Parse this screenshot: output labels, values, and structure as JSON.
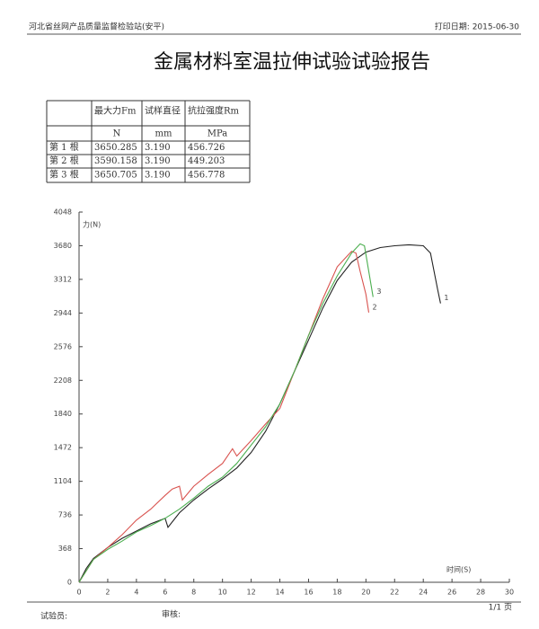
{
  "header": {
    "org": "河北省丝网产品质量监督检验站(安平)",
    "print_date": "打印日期: 2015-06-30"
  },
  "title": "金属材料室温拉伸试验试验报告",
  "table": {
    "header": [
      "最大力Fm",
      "试样直径",
      "抗拉强度Rm"
    ],
    "units": [
      "N",
      "mm",
      "MPa"
    ],
    "rows": [
      [
        "第 1 根",
        "3650.285",
        "3.190",
        "456.726"
      ],
      [
        "第 2 根",
        "3590.158",
        "3.190",
        "449.203"
      ],
      [
        "第 3 根",
        "3650.705",
        "3.190",
        "456.778"
      ]
    ]
  },
  "chart_data": {
    "type": "line",
    "ylabel": "力(N)",
    "xlabel": "时间(S)",
    "xlim": [
      0,
      30
    ],
    "xticks": [
      0,
      2,
      4,
      6,
      8,
      10,
      12,
      14,
      16,
      18,
      20,
      22,
      24,
      26,
      28,
      30
    ],
    "ylim": [
      0,
      4048
    ],
    "yticks": [
      0,
      368,
      736,
      1104,
      1472,
      1840,
      2208,
      2576,
      2944,
      3312,
      3680,
      4048
    ],
    "grid": false,
    "series": [
      {
        "name": "1",
        "color": "#222222",
        "x": [
          0,
          0.5,
          1,
          2,
          3,
          4,
          5,
          6,
          6.2,
          7,
          8,
          9,
          10,
          11,
          12,
          13,
          14,
          15,
          16,
          17,
          18,
          19,
          20,
          21,
          22,
          23,
          24,
          24.5,
          25,
          25.2
        ],
        "values": [
          0,
          150,
          260,
          380,
          480,
          560,
          640,
          700,
          600,
          760,
          900,
          1020,
          1130,
          1250,
          1420,
          1650,
          1950,
          2300,
          2650,
          3000,
          3300,
          3500,
          3610,
          3660,
          3680,
          3690,
          3680,
          3600,
          3200,
          3050
        ]
      },
      {
        "name": "2",
        "color": "#d9534f",
        "x": [
          0,
          1,
          2,
          3,
          4,
          5,
          6,
          6.5,
          7,
          7.2,
          8,
          9,
          10,
          10.7,
          11,
          12,
          13,
          14,
          15,
          16,
          17,
          18,
          19,
          19.3,
          19.6,
          20,
          20.2
        ],
        "values": [
          0,
          250,
          380,
          520,
          680,
          800,
          950,
          1020,
          1050,
          900,
          1050,
          1180,
          1300,
          1460,
          1380,
          1550,
          1730,
          1900,
          2300,
          2700,
          3100,
          3450,
          3620,
          3600,
          3400,
          3150,
          2950
        ]
      },
      {
        "name": "3",
        "color": "#4caf50",
        "x": [
          0,
          1,
          2,
          3,
          4,
          5,
          6,
          7,
          8,
          9,
          10,
          11,
          12,
          13,
          14,
          15,
          16,
          17,
          18,
          19,
          19.6,
          19.9,
          20.2,
          20.5
        ],
        "values": [
          0,
          250,
          360,
          450,
          550,
          620,
          700,
          800,
          920,
          1050,
          1150,
          1300,
          1500,
          1700,
          1950,
          2300,
          2700,
          3050,
          3350,
          3600,
          3700,
          3680,
          3400,
          3120
        ]
      }
    ]
  },
  "footer": {
    "tester": "试验员:",
    "reviewer": "审核:",
    "page": "1/1 页"
  }
}
